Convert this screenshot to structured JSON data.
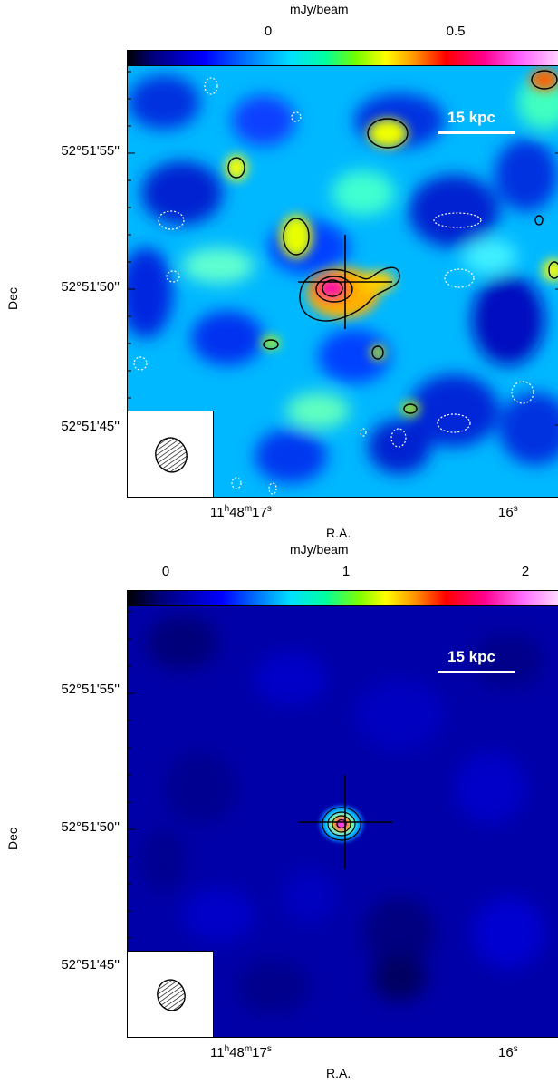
{
  "panels": [
    {
      "colorbar": {
        "title": "mJy/beam",
        "ticks": [
          "0",
          "0.5"
        ],
        "gradient": [
          "#000000",
          "#0000a0",
          "#0055ff",
          "#00d0ff",
          "#00ffa0",
          "#a0ff00",
          "#ffff00",
          "#ff8000",
          "#ff0000",
          "#ff00a0",
          "#ff80ff"
        ]
      },
      "dec_labels": [
        "52°51'55''",
        "52°51'50''",
        "52°51'45''"
      ],
      "dec_axis_title": "Dec",
      "ra_labels": {
        "major_prefix": "11",
        "h": "h",
        "m_val": "48",
        "m": "m",
        "s_val": "17",
        "s": "s",
        "second": "16"
      },
      "ra_axis_title": "R.A.",
      "scalebar": "15 kpc",
      "icon": "beam-ellipse-icon"
    },
    {
      "colorbar": {
        "title": "mJy/beam",
        "ticks": [
          "0",
          "1",
          "2"
        ],
        "gradient": [
          "#000000",
          "#0000a0",
          "#0055ff",
          "#00d0ff",
          "#00ffa0",
          "#a0ff00",
          "#ffff00",
          "#ff8000",
          "#ff0000",
          "#ff00a0",
          "#ff80ff"
        ]
      },
      "dec_labels": [
        "52°51'55''",
        "52°51'50''",
        "52°51'45''"
      ],
      "dec_axis_title": "Dec",
      "ra_labels": {
        "major_prefix": "11",
        "h": "h",
        "m_val": "48",
        "m": "m",
        "s_val": "17",
        "s": "s",
        "second": "16"
      },
      "ra_axis_title": "R.A.",
      "scalebar": "15 kpc",
      "icon": "beam-ellipse-icon"
    }
  ]
}
